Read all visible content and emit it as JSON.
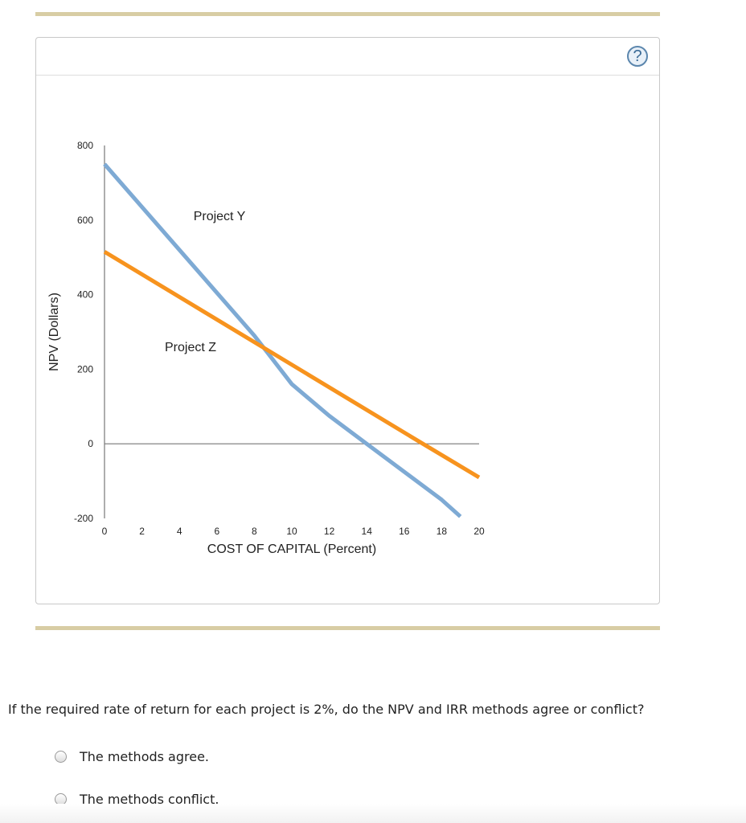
{
  "help_label": "?",
  "question": "If the required rate of return for each project is 2%, do the NPV and IRR methods agree or conflict?",
  "options": [
    "The methods agree.",
    "The methods conflict."
  ],
  "colors": {
    "project_y": "#7eaad4",
    "project_z": "#f7931e"
  },
  "chart_data": {
    "type": "line",
    "xlabel": "COST OF CAPITAL (Percent)",
    "ylabel": "NPV (Dollars)",
    "xlim": [
      0,
      20
    ],
    "ylim": [
      -200,
      800
    ],
    "xticks": [
      "0",
      "2",
      "4",
      "6",
      "8",
      "10",
      "12",
      "14",
      "16",
      "18",
      "20"
    ],
    "yticks": [
      "800",
      "600",
      "400",
      "200",
      "0",
      "-200"
    ],
    "grid": false,
    "series": [
      {
        "name": "Project Y",
        "x": [
          0,
          4,
          8,
          10,
          12,
          14,
          16,
          18,
          19
        ],
        "y": [
          750,
          520,
          290,
          160,
          75,
          0,
          -75,
          -150,
          -195
        ]
      },
      {
        "name": "Project Z",
        "x": [
          0,
          17,
          20
        ],
        "y": [
          515,
          0,
          -90
        ]
      }
    ]
  }
}
